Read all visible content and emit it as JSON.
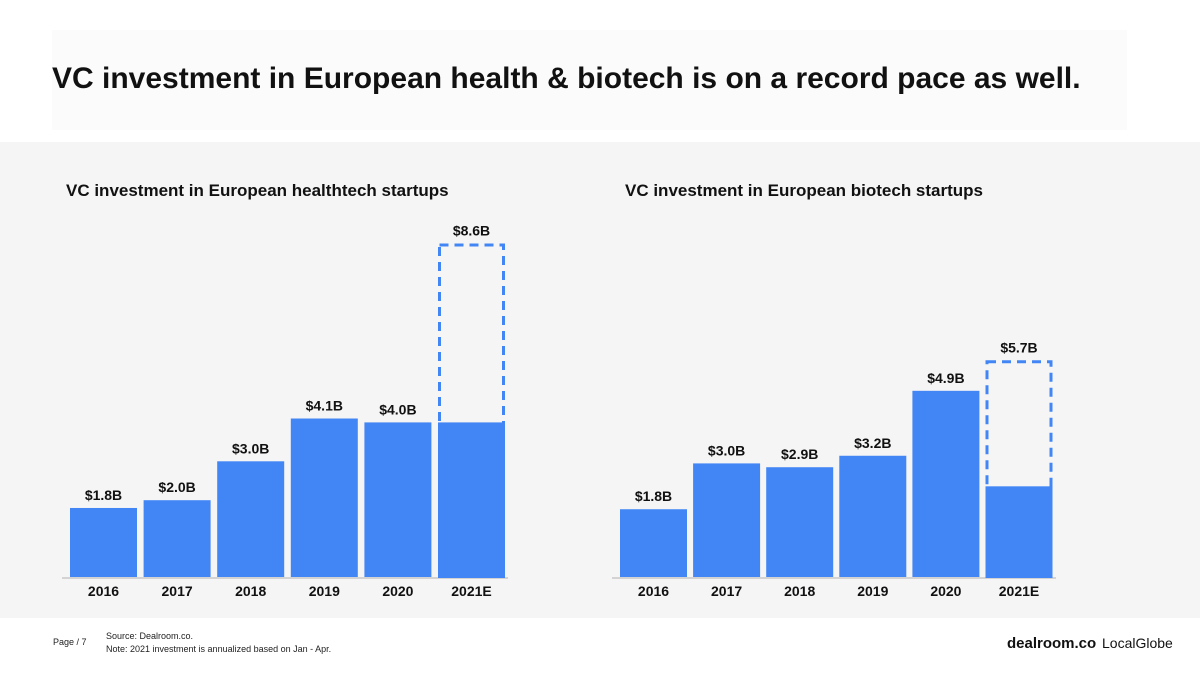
{
  "page": {
    "title": "VC investment in European health & biotech is on a record pace as well.",
    "page_number": "Page / 7",
    "source": "Source: Dealroom.co.",
    "note": "Note: 2021 investment is annualized based on Jan - Apr.",
    "brands": [
      "dealroom.co",
      "LocalGlobe"
    ]
  },
  "colors": {
    "bar": "#4286f5",
    "axis": "#c8c8c8",
    "panel": "#f5f5f5"
  },
  "chart_data": [
    {
      "type": "bar",
      "title": "VC investment in European healthtech startups",
      "categories": [
        "2016",
        "2017",
        "2018",
        "2019",
        "2020",
        "2021E"
      ],
      "values": [
        1.8,
        2.0,
        3.0,
        4.1,
        4.0,
        8.6
      ],
      "value_labels": [
        "$1.8B",
        "$2.0B",
        "$3.0B",
        "$4.1B",
        "$4.0B",
        "$8.6B"
      ],
      "ytd_2021_actual": 4.0,
      "estimate_category": "2021E",
      "unit": "USD billions",
      "grid": false,
      "legend": "none"
    },
    {
      "type": "bar",
      "title": "VC investment in European biotech startups",
      "categories": [
        "2016",
        "2017",
        "2018",
        "2019",
        "2020",
        "2021E"
      ],
      "values": [
        1.8,
        3.0,
        2.9,
        3.2,
        4.9,
        5.7
      ],
      "value_labels": [
        "$1.8B",
        "$3.0B",
        "$2.9B",
        "$3.2B",
        "$4.9B",
        "$5.7B"
      ],
      "ytd_2021_actual": 2.4,
      "estimate_category": "2021E",
      "unit": "USD billions",
      "grid": false,
      "legend": "none"
    }
  ]
}
